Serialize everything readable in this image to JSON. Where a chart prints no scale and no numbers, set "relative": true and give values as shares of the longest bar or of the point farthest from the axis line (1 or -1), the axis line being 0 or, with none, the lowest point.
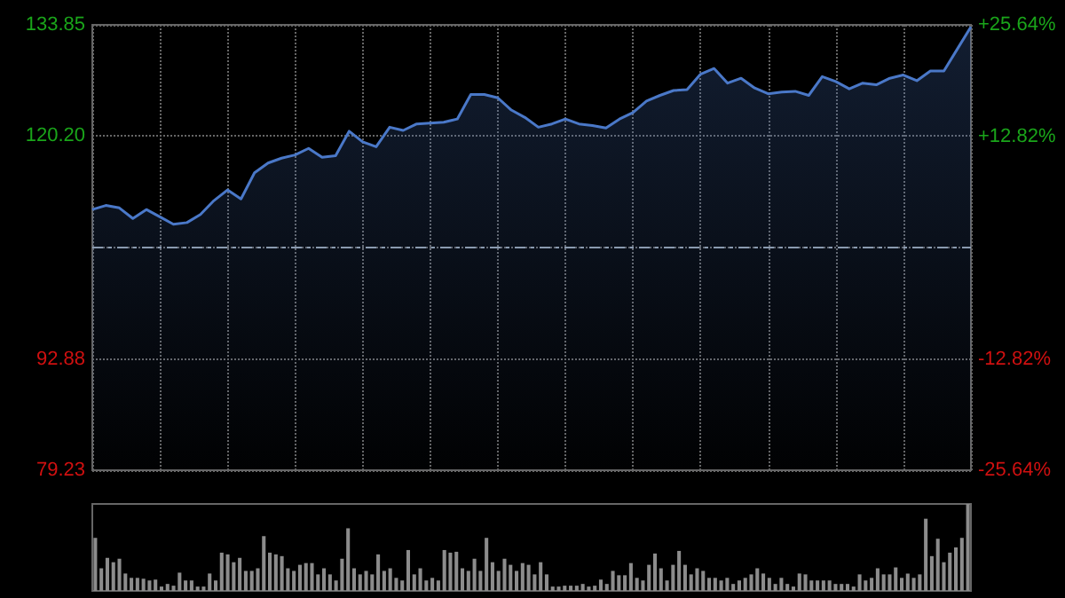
{
  "chart_data": [
    {
      "type": "area",
      "categories": [
        null,
        null,
        null,
        null,
        null,
        null,
        null,
        null,
        null,
        null,
        null,
        null,
        null,
        null,
        null,
        null,
        null,
        null,
        null,
        null,
        null,
        null,
        null,
        null,
        null,
        null,
        null,
        null,
        null,
        null,
        null,
        null,
        null,
        null,
        null,
        null,
        null,
        null,
        null,
        null,
        null,
        null,
        null,
        null,
        null,
        null,
        null,
        null,
        null,
        null,
        null,
        null,
        null,
        null,
        null,
        null,
        null,
        null,
        null,
        null,
        null,
        null,
        null,
        null,
        null,
        null
      ],
      "series": [
        {
          "color": "#4a78c8",
          "values": [
            111.2,
            111.7,
            111.4,
            110.1,
            111.2,
            110.3,
            109.4,
            109.6,
            110.6,
            112.3,
            113.6,
            112.5,
            115.7,
            116.9,
            117.5,
            117.9,
            118.7,
            117.6,
            117.8,
            120.8,
            119.5,
            118.9,
            121.3,
            120.9,
            121.7,
            121.8,
            121.9,
            122.3,
            125.3,
            125.3,
            124.9,
            123.4,
            122.5,
            121.3,
            121.7,
            122.3,
            121.7,
            121.5,
            121.2,
            122.3,
            123.1,
            124.5,
            125.2,
            125.8,
            125.9,
            127.8,
            128.5,
            126.7,
            127.3,
            126.1,
            125.4,
            125.6,
            125.7,
            125.2,
            127.5,
            126.9,
            126.0,
            126.7,
            126.5,
            127.3,
            127.7,
            127.0,
            128.2,
            128.2,
            130.9,
            133.6
          ]
        }
      ],
      "ylim": [
        79.23,
        133.85
      ],
      "yticks": [
        79.23,
        92.88,
        {
          "value": 106.54,
          "label": null
        },
        {
          "value": 120.2,
          "label": "120.20"
        },
        133.85
      ],
      "y2lim": [
        -25.64,
        25.64
      ],
      "y2ticks": [
        {
          "value": -25.64,
          "label": "-25.64%"
        },
        {
          "value": -12.82,
          "label": "-12.82%"
        },
        {
          "value": 0,
          "label": null
        },
        {
          "value": 12.82,
          "label": "+12.82%"
        },
        {
          "value": 25.64,
          "label": "+25.64%"
        }
      ],
      "ref_lines": [
        {
          "axis": "y",
          "value": 106.54,
          "color": "#8a9ab0",
          "line_style": "dashed"
        }
      ],
      "grid": true,
      "tick_labels": "y"
    },
    {
      "type": "bar",
      "relative": true,
      "tick_labels": false,
      "categories": [
        null,
        null,
        null,
        null,
        null,
        null,
        null,
        null,
        null,
        null,
        null,
        null,
        null,
        null,
        null,
        null,
        null,
        null,
        null,
        null,
        null,
        null,
        null,
        null,
        null,
        null,
        null,
        null,
        null,
        null,
        null,
        null,
        null,
        null,
        null,
        null,
        null,
        null,
        null,
        null,
        null,
        null,
        null,
        null,
        null,
        null,
        null,
        null,
        null,
        null,
        null,
        null,
        null,
        null,
        null,
        null,
        null,
        null,
        null,
        null,
        null,
        null,
        null,
        null,
        null,
        null,
        null,
        null,
        null,
        null,
        null,
        null,
        null,
        null,
        null,
        null,
        null,
        null,
        null,
        null,
        null,
        null,
        null,
        null,
        null,
        null,
        null,
        null,
        null,
        null,
        null,
        null,
        null,
        null,
        null,
        null,
        null,
        null,
        null,
        null,
        null,
        null,
        null,
        null,
        null,
        null,
        null,
        null,
        null,
        null,
        null,
        null,
        null,
        null,
        null,
        null,
        null,
        null,
        null,
        null,
        null,
        null,
        null,
        null,
        null,
        null,
        null,
        null,
        null,
        null,
        null,
        null,
        null,
        null,
        null,
        null,
        null,
        null,
        null,
        null,
        null,
        null,
        null,
        null,
        null,
        null
      ],
      "series": [
        {
          "color": "#8c8c8c",
          "values": [
            0.61,
            0.26,
            0.38,
            0.33,
            0.37,
            0.2,
            0.15,
            0.15,
            0.14,
            0.12,
            0.13,
            0.05,
            0.08,
            0.06,
            0.21,
            0.12,
            0.12,
            0.05,
            0.05,
            0.2,
            0.12,
            0.44,
            0.42,
            0.33,
            0.38,
            0.23,
            0.23,
            0.26,
            0.63,
            0.44,
            0.42,
            0.4,
            0.26,
            0.23,
            0.3,
            0.32,
            0.32,
            0.19,
            0.26,
            0.19,
            0.12,
            0.37,
            0.72,
            0.26,
            0.19,
            0.23,
            0.19,
            0.42,
            0.23,
            0.26,
            0.15,
            0.12,
            0.47,
            0.19,
            0.26,
            0.12,
            0.15,
            0.12,
            0.47,
            0.44,
            0.45,
            0.26,
            0.23,
            0.37,
            0.23,
            0.61,
            0.33,
            0.23,
            0.37,
            0.3,
            0.23,
            0.32,
            0.3,
            0.19,
            0.33,
            0.19,
            0.05,
            0.05,
            0.06,
            0.06,
            0.06,
            0.08,
            0.05,
            0.06,
            0.13,
            0.08,
            0.23,
            0.18,
            0.18,
            0.32,
            0.15,
            0.12,
            0.3,
            0.43,
            0.26,
            0.12,
            0.3,
            0.46,
            0.3,
            0.19,
            0.26,
            0.23,
            0.15,
            0.15,
            0.12,
            0.15,
            0.08,
            0.12,
            0.15,
            0.19,
            0.26,
            0.2,
            0.15,
            0.08,
            0.15,
            0.08,
            0.05,
            0.2,
            0.19,
            0.12,
            0.12,
            0.12,
            0.12,
            0.08,
            0.08,
            0.08,
            0.05,
            0.19,
            0.12,
            0.15,
            0.26,
            0.19,
            0.19,
            0.27,
            0.15,
            0.2,
            0.15,
            0.19,
            0.83,
            0.4,
            0.6,
            0.33,
            0.44,
            0.5,
            0.61,
            1.0
          ]
        }
      ]
    }
  ]
}
